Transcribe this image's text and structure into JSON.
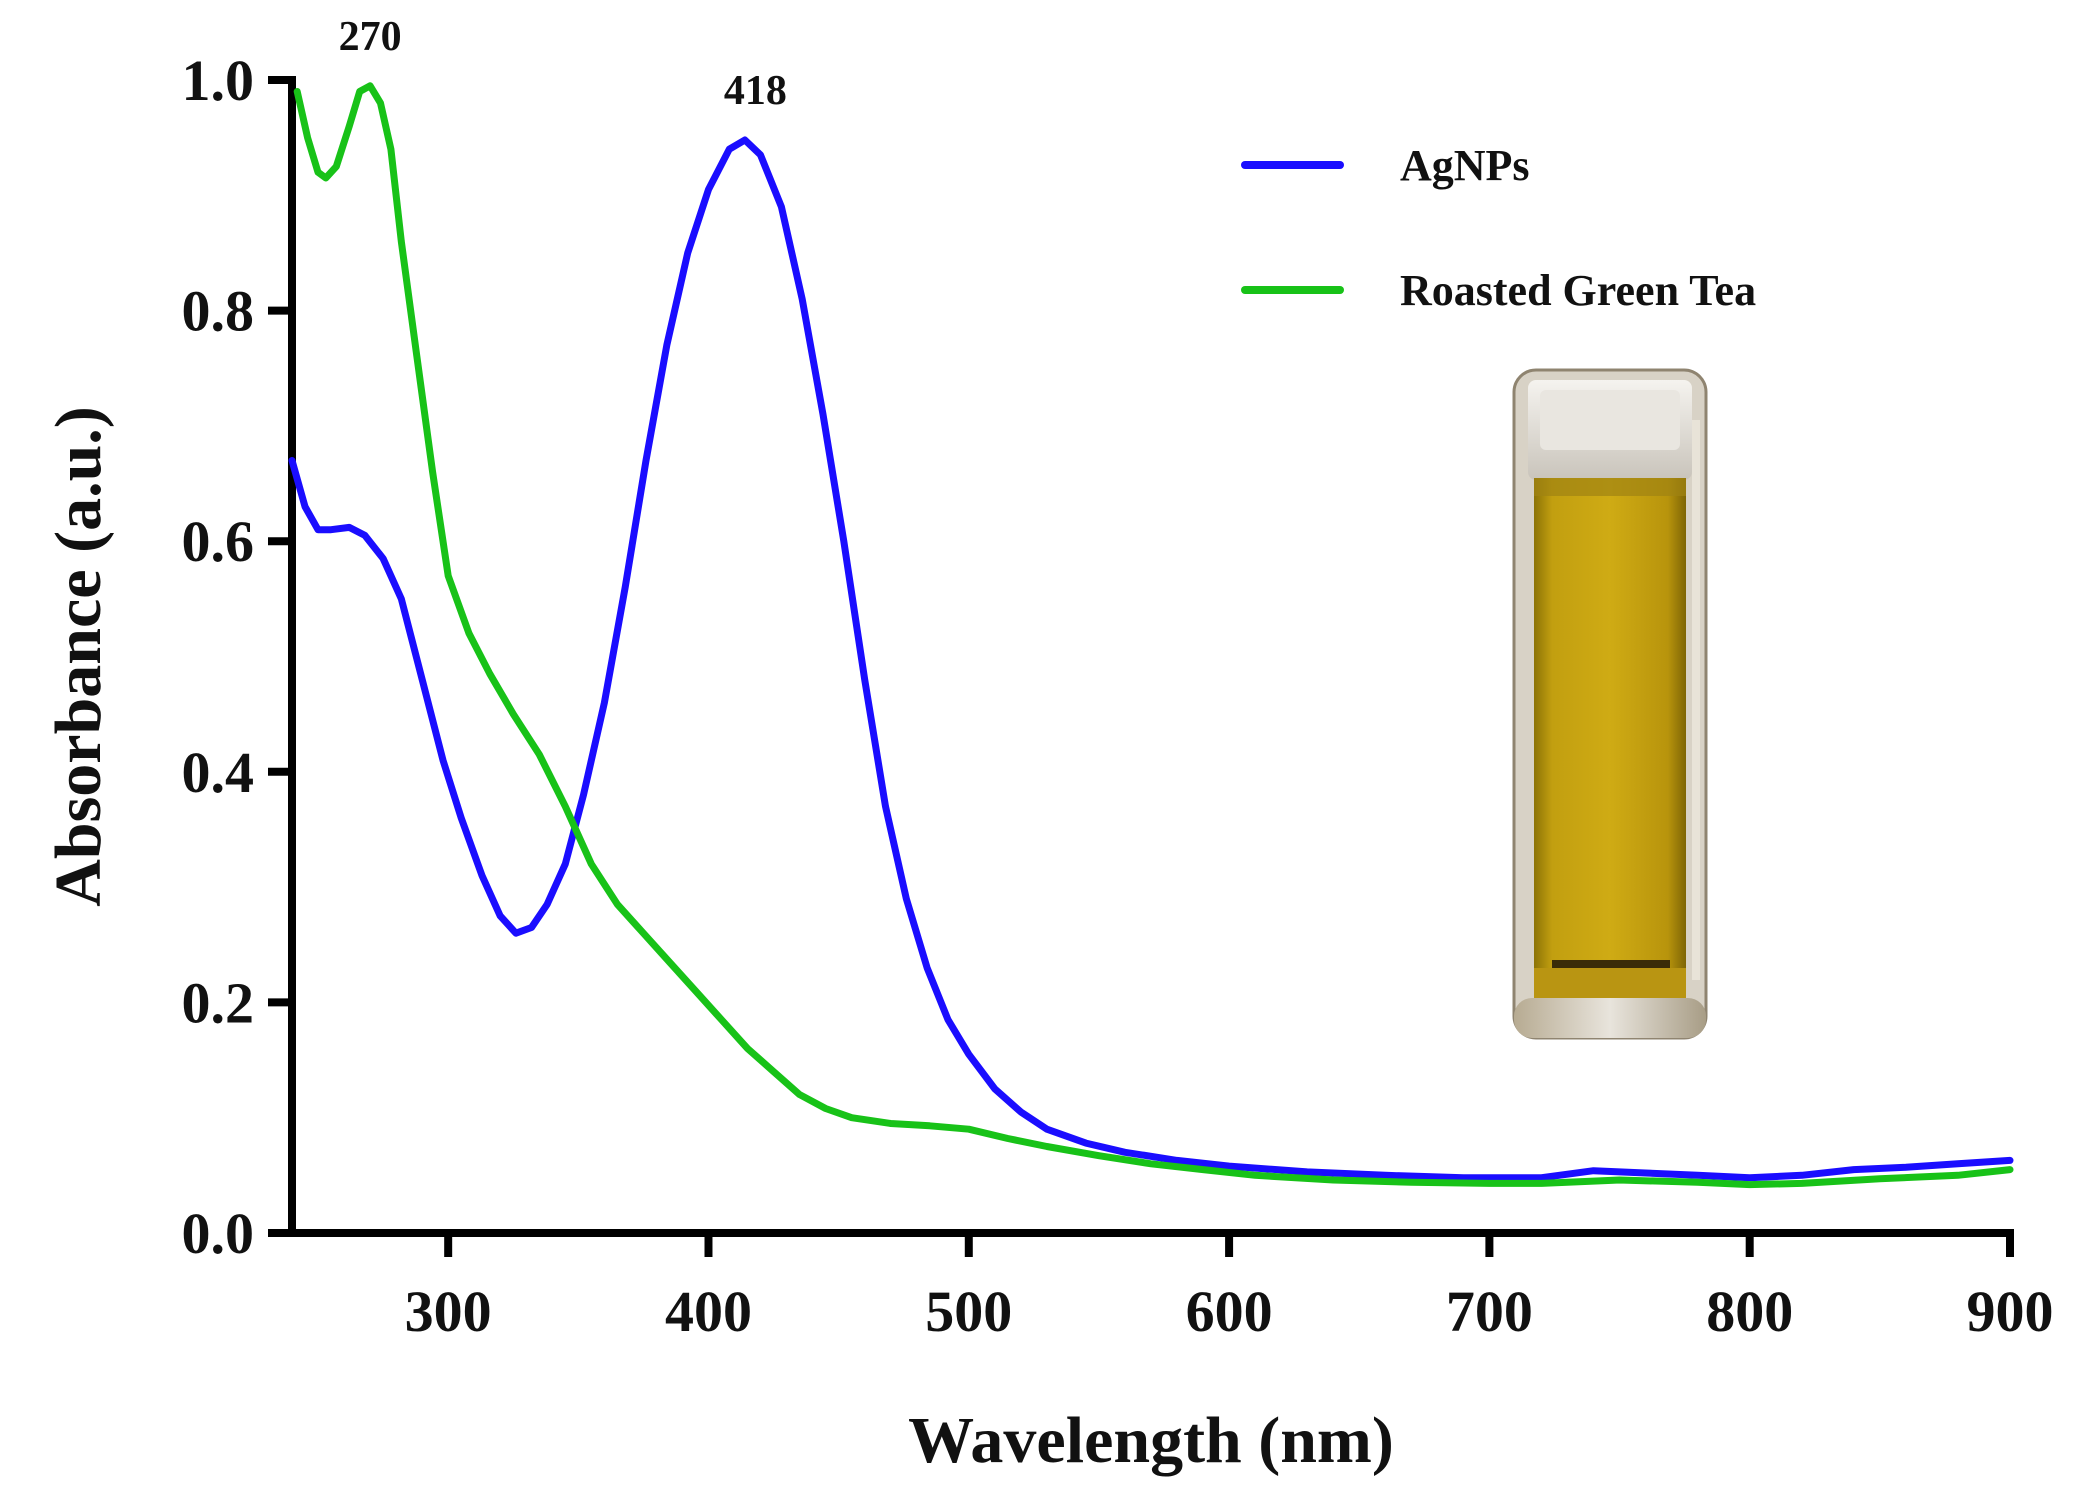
{
  "chart_data": {
    "type": "line",
    "title": "",
    "xlabel": "Wavelength (nm)",
    "ylabel": "Absorbance (a.u.)",
    "xlim": [
      240,
      900
    ],
    "ylim": [
      0.0,
      1.0
    ],
    "x_ticks": [
      300,
      400,
      500,
      600,
      700,
      800,
      900
    ],
    "x_tick_labels": [
      "300",
      "400",
      "500",
      "600",
      "700",
      "800",
      "900"
    ],
    "y_ticks": [
      0.0,
      0.2,
      0.4,
      0.6,
      0.8,
      1.0
    ],
    "y_tick_labels": [
      "0.0",
      "0.2",
      "0.4",
      "0.6",
      "0.8",
      "1.0"
    ],
    "grid": false,
    "legend_position": "top-right",
    "series": [
      {
        "name": "AgNPs",
        "color": "#1a0dff",
        "points": [
          [
            240,
            0.67
          ],
          [
            245,
            0.63
          ],
          [
            250,
            0.61
          ],
          [
            255,
            0.61
          ],
          [
            262,
            0.612
          ],
          [
            268,
            0.605
          ],
          [
            275,
            0.585
          ],
          [
            282,
            0.55
          ],
          [
            290,
            0.48
          ],
          [
            298,
            0.41
          ],
          [
            305,
            0.36
          ],
          [
            313,
            0.31
          ],
          [
            320,
            0.275
          ],
          [
            326,
            0.26
          ],
          [
            332,
            0.265
          ],
          [
            338,
            0.285
          ],
          [
            345,
            0.32
          ],
          [
            352,
            0.38
          ],
          [
            360,
            0.46
          ],
          [
            368,
            0.56
          ],
          [
            376,
            0.67
          ],
          [
            384,
            0.77
          ],
          [
            392,
            0.85
          ],
          [
            400,
            0.905
          ],
          [
            408,
            0.94
          ],
          [
            414,
            0.948
          ],
          [
            420,
            0.935
          ],
          [
            428,
            0.89
          ],
          [
            436,
            0.81
          ],
          [
            444,
            0.71
          ],
          [
            452,
            0.6
          ],
          [
            460,
            0.48
          ],
          [
            468,
            0.37
          ],
          [
            476,
            0.29
          ],
          [
            484,
            0.23
          ],
          [
            492,
            0.185
          ],
          [
            500,
            0.155
          ],
          [
            510,
            0.125
          ],
          [
            520,
            0.105
          ],
          [
            530,
            0.09
          ],
          [
            545,
            0.078
          ],
          [
            560,
            0.07
          ],
          [
            580,
            0.063
          ],
          [
            600,
            0.058
          ],
          [
            630,
            0.053
          ],
          [
            660,
            0.05
          ],
          [
            690,
            0.048
          ],
          [
            720,
            0.048
          ],
          [
            740,
            0.054
          ],
          [
            760,
            0.052
          ],
          [
            780,
            0.05
          ],
          [
            800,
            0.048
          ],
          [
            820,
            0.05
          ],
          [
            840,
            0.055
          ],
          [
            860,
            0.057
          ],
          [
            880,
            0.06
          ],
          [
            900,
            0.063
          ]
        ]
      },
      {
        "name": "Roasted Green Tea",
        "color": "#18c218",
        "points": [
          [
            242,
            0.99
          ],
          [
            246,
            0.95
          ],
          [
            250,
            0.92
          ],
          [
            253,
            0.915
          ],
          [
            257,
            0.925
          ],
          [
            262,
            0.96
          ],
          [
            266,
            0.99
          ],
          [
            270,
            0.995
          ],
          [
            274,
            0.98
          ],
          [
            278,
            0.94
          ],
          [
            282,
            0.86
          ],
          [
            288,
            0.76
          ],
          [
            294,
            0.66
          ],
          [
            300,
            0.57
          ],
          [
            308,
            0.52
          ],
          [
            316,
            0.485
          ],
          [
            325,
            0.45
          ],
          [
            335,
            0.415
          ],
          [
            345,
            0.37
          ],
          [
            355,
            0.32
          ],
          [
            365,
            0.285
          ],
          [
            375,
            0.26
          ],
          [
            385,
            0.235
          ],
          [
            395,
            0.21
          ],
          [
            405,
            0.185
          ],
          [
            415,
            0.16
          ],
          [
            425,
            0.14
          ],
          [
            435,
            0.12
          ],
          [
            445,
            0.108
          ],
          [
            455,
            0.1
          ],
          [
            470,
            0.095
          ],
          [
            485,
            0.093
          ],
          [
            500,
            0.09
          ],
          [
            515,
            0.082
          ],
          [
            530,
            0.075
          ],
          [
            550,
            0.067
          ],
          [
            570,
            0.06
          ],
          [
            590,
            0.055
          ],
          [
            610,
            0.05
          ],
          [
            640,
            0.046
          ],
          [
            670,
            0.044
          ],
          [
            700,
            0.043
          ],
          [
            720,
            0.043
          ],
          [
            750,
            0.046
          ],
          [
            780,
            0.044
          ],
          [
            800,
            0.042
          ],
          [
            820,
            0.043
          ],
          [
            850,
            0.047
          ],
          [
            880,
            0.05
          ],
          [
            900,
            0.055
          ]
        ]
      }
    ],
    "annotations": [
      {
        "text": "270",
        "x": 270,
        "y": 0.995
      },
      {
        "text": "418",
        "x": 418,
        "y": 0.948
      }
    ]
  }
}
